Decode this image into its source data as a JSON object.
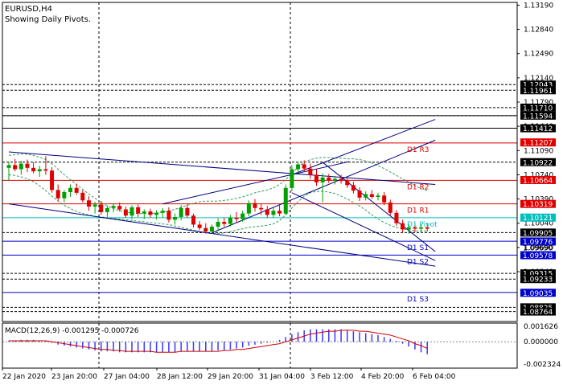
{
  "header": {
    "symbol": "EURUSD,H4",
    "subtitle": "Showing Daily Pivots."
  },
  "colors": {
    "background": "#ffffff",
    "grid": "#000000",
    "bull": "#00a000",
    "bear": "#e00000",
    "channel": "#00007f",
    "resistance": "#e00000",
    "pivot": "#00bfbf",
    "support": "#0000c8",
    "ma": "#2e9e5b",
    "macd_hist": "#3a3aff",
    "macd_signal": "#d00000",
    "label_black_bg": "#000000",
    "label_red_bg": "#e00000",
    "label_blue_bg": "#0000cc",
    "label_cyan_bg": "#00bfbf"
  },
  "chart_data": {
    "type": "candlestick",
    "title": "EURUSD,H4",
    "ylim": [
      1.0862,
      1.1323
    ],
    "y_ticks": [
      "1.13190",
      "1.12840",
      "1.12490",
      "1.12140",
      "1.11790",
      "1.11440",
      "1.11090",
      "1.10740",
      "1.10390",
      "1.10040",
      "1.09690",
      "1.09340"
    ],
    "x_labels": [
      "22 Jan 2020",
      "23 Jan 20:00",
      "27 Jan 04:00",
      "28 Jan 12:00",
      "29 Jan 20:00",
      "31 Jan 04:00",
      "3 Feb 12:00",
      "4 Feb 20:00",
      "6 Feb 04:00"
    ],
    "grid": "dashed vertical lines",
    "pivot_lines": [
      {
        "name": "D1 R3",
        "value": 1.112
      },
      {
        "name": "D1 R2",
        "value": 1.1066
      },
      {
        "name": "D1 R1",
        "value": 1.1032
      },
      {
        "name": "D1 Pivot",
        "value": 1.1012
      },
      {
        "name": "D1 S1",
        "value": 1.0978
      },
      {
        "name": "D1 S2",
        "value": 1.0958
      },
      {
        "name": "D1 S3",
        "value": 1.0904
      }
    ],
    "price_labels": [
      {
        "text": "1.12043",
        "value": 1.12043,
        "style": "black"
      },
      {
        "text": "1.11961",
        "value": 1.11961,
        "style": "black"
      },
      {
        "text": "1.11710",
        "value": 1.1171,
        "style": "black"
      },
      {
        "text": "1.11594",
        "value": 1.11594,
        "style": "black"
      },
      {
        "text": "1.11412",
        "value": 1.11412,
        "style": "black"
      },
      {
        "text": "1.11207",
        "value": 1.11207,
        "style": "red"
      },
      {
        "text": "1.10922",
        "value": 1.10922,
        "style": "black"
      },
      {
        "text": "1.10664",
        "value": 1.10664,
        "style": "red"
      },
      {
        "text": "1.10319",
        "value": 1.10319,
        "style": "red"
      },
      {
        "text": "1.10121",
        "value": 1.10121,
        "style": "cyan"
      },
      {
        "text": "1.09905",
        "value": 1.09905,
        "style": "black"
      },
      {
        "text": "1.09776",
        "value": 1.09776,
        "style": "blue"
      },
      {
        "text": "1.09690",
        "value": 1.0969,
        "style": "plain"
      },
      {
        "text": "1.09578",
        "value": 1.09578,
        "style": "blue"
      },
      {
        "text": "1.09315",
        "value": 1.09315,
        "style": "black"
      },
      {
        "text": "1.09233",
        "value": 1.09233,
        "style": "black"
      },
      {
        "text": "1.09035",
        "value": 1.09035,
        "style": "blue"
      },
      {
        "text": "1.08825",
        "value": 1.08825,
        "style": "black"
      },
      {
        "text": "1.08764",
        "value": 1.08764,
        "style": "black"
      }
    ],
    "dashed_levels": [
      1.12043,
      1.11961,
      1.1171,
      1.11594,
      1.11412,
      1.10922,
      1.09905,
      1.09315,
      1.09233,
      1.08825,
      1.08764
    ],
    "candles": [
      {
        "o": 1.1084,
        "h": 1.1093,
        "l": 1.1066,
        "c": 1.1088
      },
      {
        "o": 1.1088,
        "h": 1.1097,
        "l": 1.1079,
        "c": 1.1082
      },
      {
        "o": 1.1082,
        "h": 1.1094,
        "l": 1.1074,
        "c": 1.109
      },
      {
        "o": 1.109,
        "h": 1.1096,
        "l": 1.1078,
        "c": 1.1084
      },
      {
        "o": 1.1084,
        "h": 1.1092,
        "l": 1.1076,
        "c": 1.1079
      },
      {
        "o": 1.1079,
        "h": 1.1087,
        "l": 1.1071,
        "c": 1.1082
      },
      {
        "o": 1.1082,
        "h": 1.1101,
        "l": 1.1074,
        "c": 1.108
      },
      {
        "o": 1.108,
        "h": 1.1085,
        "l": 1.1048,
        "c": 1.1052
      },
      {
        "o": 1.1052,
        "h": 1.106,
        "l": 1.1036,
        "c": 1.104
      },
      {
        "o": 1.104,
        "h": 1.1052,
        "l": 1.1034,
        "c": 1.1049
      },
      {
        "o": 1.1049,
        "h": 1.106,
        "l": 1.1042,
        "c": 1.1055
      },
      {
        "o": 1.1055,
        "h": 1.1061,
        "l": 1.1045,
        "c": 1.1048
      },
      {
        "o": 1.1048,
        "h": 1.1052,
        "l": 1.1034,
        "c": 1.1037
      },
      {
        "o": 1.1037,
        "h": 1.1043,
        "l": 1.1022,
        "c": 1.1028
      },
      {
        "o": 1.1028,
        "h": 1.1035,
        "l": 1.1018,
        "c": 1.1031
      },
      {
        "o": 1.1031,
        "h": 1.1036,
        "l": 1.1016,
        "c": 1.102
      },
      {
        "o": 1.102,
        "h": 1.1029,
        "l": 1.1013,
        "c": 1.1026
      },
      {
        "o": 1.1026,
        "h": 1.1033,
        "l": 1.102,
        "c": 1.1029
      },
      {
        "o": 1.1029,
        "h": 1.1034,
        "l": 1.1021,
        "c": 1.1024
      },
      {
        "o": 1.1024,
        "h": 1.1028,
        "l": 1.1012,
        "c": 1.1015
      },
      {
        "o": 1.1015,
        "h": 1.103,
        "l": 1.101,
        "c": 1.1027
      },
      {
        "o": 1.1027,
        "h": 1.1031,
        "l": 1.1013,
        "c": 1.1018
      },
      {
        "o": 1.1018,
        "h": 1.1024,
        "l": 1.101,
        "c": 1.1021
      },
      {
        "o": 1.1021,
        "h": 1.1025,
        "l": 1.1012,
        "c": 1.1016
      },
      {
        "o": 1.1016,
        "h": 1.1023,
        "l": 1.1009,
        "c": 1.1019
      },
      {
        "o": 1.1019,
        "h": 1.1026,
        "l": 1.1012,
        "c": 1.1022
      },
      {
        "o": 1.1022,
        "h": 1.1027,
        "l": 1.1005,
        "c": 1.1009
      },
      {
        "o": 1.1009,
        "h": 1.1018,
        "l": 1.1002,
        "c": 1.1013
      },
      {
        "o": 1.1013,
        "h": 1.103,
        "l": 1.1008,
        "c": 1.1026
      },
      {
        "o": 1.1026,
        "h": 1.1031,
        "l": 1.1012,
        "c": 1.1015
      },
      {
        "o": 1.1015,
        "h": 1.1018,
        "l": 1.0998,
        "c": 1.1002
      },
      {
        "o": 1.1002,
        "h": 1.1007,
        "l": 1.0994,
        "c": 1.0997
      },
      {
        "o": 1.0997,
        "h": 1.1004,
        "l": 1.0989,
        "c": 1.0992
      },
      {
        "o": 1.0992,
        "h": 1.1002,
        "l": 1.0989,
        "c": 1.0999
      },
      {
        "o": 1.0999,
        "h": 1.1011,
        "l": 1.0994,
        "c": 1.1006
      },
      {
        "o": 1.1006,
        "h": 1.1012,
        "l": 1.0999,
        "c": 1.1003
      },
      {
        "o": 1.1003,
        "h": 1.1016,
        "l": 1.0999,
        "c": 1.1012
      },
      {
        "o": 1.1012,
        "h": 1.102,
        "l": 1.1005,
        "c": 1.101
      },
      {
        "o": 1.101,
        "h": 1.1022,
        "l": 1.1006,
        "c": 1.1018
      },
      {
        "o": 1.1018,
        "h": 1.1037,
        "l": 1.1014,
        "c": 1.1033
      },
      {
        "o": 1.1033,
        "h": 1.1039,
        "l": 1.1021,
        "c": 1.1026
      },
      {
        "o": 1.1026,
        "h": 1.1032,
        "l": 1.1016,
        "c": 1.1024
      },
      {
        "o": 1.1024,
        "h": 1.1029,
        "l": 1.1012,
        "c": 1.1016
      },
      {
        "o": 1.1016,
        "h": 1.1026,
        "l": 1.1012,
        "c": 1.1022
      },
      {
        "o": 1.1022,
        "h": 1.103,
        "l": 1.1014,
        "c": 1.1018
      },
      {
        "o": 1.1018,
        "h": 1.106,
        "l": 1.1016,
        "c": 1.1055
      },
      {
        "o": 1.1055,
        "h": 1.1088,
        "l": 1.105,
        "c": 1.1082
      },
      {
        "o": 1.1082,
        "h": 1.1093,
        "l": 1.1076,
        "c": 1.1089
      },
      {
        "o": 1.1089,
        "h": 1.1095,
        "l": 1.1078,
        "c": 1.1083
      },
      {
        "o": 1.1083,
        "h": 1.109,
        "l": 1.1068,
        "c": 1.1074
      },
      {
        "o": 1.1074,
        "h": 1.1082,
        "l": 1.1058,
        "c": 1.1063
      },
      {
        "o": 1.1063,
        "h": 1.1076,
        "l": 1.1034,
        "c": 1.107
      },
      {
        "o": 1.107,
        "h": 1.1075,
        "l": 1.1062,
        "c": 1.1066
      },
      {
        "o": 1.1066,
        "h": 1.1072,
        "l": 1.106,
        "c": 1.1068
      },
      {
        "o": 1.1068,
        "h": 1.1074,
        "l": 1.1061,
        "c": 1.1065
      },
      {
        "o": 1.1065,
        "h": 1.107,
        "l": 1.1055,
        "c": 1.1059
      },
      {
        "o": 1.1059,
        "h": 1.1064,
        "l": 1.1047,
        "c": 1.1051
      },
      {
        "o": 1.1051,
        "h": 1.1056,
        "l": 1.1036,
        "c": 1.1041
      },
      {
        "o": 1.1041,
        "h": 1.105,
        "l": 1.1037,
        "c": 1.1046
      },
      {
        "o": 1.1046,
        "h": 1.1052,
        "l": 1.1039,
        "c": 1.1042
      },
      {
        "o": 1.1042,
        "h": 1.1048,
        "l": 1.1037,
        "c": 1.1044
      },
      {
        "o": 1.1044,
        "h": 1.1049,
        "l": 1.103,
        "c": 1.1034
      },
      {
        "o": 1.1034,
        "h": 1.1038,
        "l": 1.1015,
        "c": 1.1019
      },
      {
        "o": 1.1019,
        "h": 1.1023,
        "l": 1.1,
        "c": 1.1004
      },
      {
        "o": 1.1004,
        "h": 1.1009,
        "l": 1.099,
        "c": 1.0995
      },
      {
        "o": 1.0995,
        "h": 1.1003,
        "l": 1.0989,
        "c": 1.0998
      },
      {
        "o": 1.0998,
        "h": 1.1004,
        "l": 1.0991,
        "c": 1.0996
      },
      {
        "o": 1.0996,
        "h": 1.1003,
        "l": 1.099,
        "c": 1.0998
      },
      {
        "o": 1.0998,
        "h": 1.1004,
        "l": 1.0992,
        "c": 1.0996
      }
    ],
    "moving_average_upper": [
      1.1102,
      1.1103,
      1.1104,
      1.1104,
      1.1102,
      1.1099,
      1.1096,
      1.109,
      1.1082,
      1.1074,
      1.1067,
      1.106,
      1.1053,
      1.1046,
      1.104,
      1.1034,
      1.1029,
      1.1025,
      1.1022,
      1.102,
      1.1019,
      1.1018,
      1.1018,
      1.1018,
      1.1019,
      1.102,
      1.1022,
      1.1024,
      1.1027,
      1.103,
      1.1033,
      1.1035,
      1.1036,
      1.1036,
      1.1036,
      1.1037,
      1.1038,
      1.104,
      1.1042,
      1.1045,
      1.1048,
      1.105,
      1.1052,
      1.1055,
      1.106,
      1.1067,
      1.1076,
      1.1085,
      1.1092,
      1.1096,
      1.1098,
      1.1099,
      1.1099,
      1.1098,
      1.1098,
      1.1097,
      1.1097,
      1.1096,
      1.1094,
      1.1091,
      1.1087,
      1.1083,
      1.1078,
      1.1073,
      1.1068,
      1.1063,
      1.1058,
      1.1054,
      1.1051
    ],
    "moving_average_lower": [
      1.1074,
      1.1073,
      1.1071,
      1.1068,
      1.1064,
      1.1058,
      1.1051,
      1.1043,
      1.1036,
      1.103,
      1.1025,
      1.1021,
      1.1018,
      1.1016,
      1.1014,
      1.1013,
      1.1012,
      1.1011,
      1.101,
      1.1009,
      1.1008,
      1.1007,
      1.1006,
      1.1005,
      1.1004,
      1.1003,
      1.1002,
      1.1,
      1.0998,
      1.0996,
      1.0994,
      1.0992,
      1.099,
      1.0989,
      1.0989,
      1.099,
      1.0992,
      1.0994,
      1.0996,
      1.0998,
      1.0999,
      1.1,
      1.1001,
      1.1003,
      1.1008,
      1.1016,
      1.1026,
      1.1035,
      1.1043,
      1.1048,
      1.105,
      1.105,
      1.1049,
      1.1047,
      1.1043,
      1.1039,
      1.1034,
      1.1029,
      1.1023,
      1.1016,
      1.101,
      1.1005,
      1.1001,
      1.0998,
      1.0996,
      1.0994,
      1.0993,
      1.0993,
      1.0993
    ],
    "channel_lines": [
      {
        "from": [
          0,
          1.1107
        ],
        "to": [
          68,
          1.106
        ]
      },
      {
        "from": [
          0,
          1.1032
        ],
        "to": [
          68,
          1.0942
        ]
      },
      {
        "from": [
          25,
          1.1032
        ],
        "to": [
          54,
          1.1093
        ]
      },
      {
        "from": [
          33,
          1.099
        ],
        "to": [
          68,
          1.1124
        ]
      },
      {
        "from": [
          46,
          1.1074
        ],
        "to": [
          68,
          1.1154
        ]
      },
      {
        "from": [
          51,
          1.1092
        ],
        "to": [
          68,
          1.0963
        ]
      },
      {
        "from": [
          46,
          1.1048
        ],
        "to": [
          68,
          1.095
        ]
      }
    ],
    "macd": {
      "label": "MACD(12,26,9) -0.001295 -0.000726",
      "y_ticks": [
        "0.001626",
        "0.000000",
        "-0.002324"
      ],
      "ylim": [
        -0.00275,
        0.00195
      ],
      "histogram": [
        0.0001,
        0.0001,
        0.0002,
        0.0002,
        0.0002,
        0.0001,
        0.0001,
        -0.0001,
        -0.0003,
        -0.0004,
        -0.0005,
        -0.0006,
        -0.0007,
        -0.0008,
        -0.0009,
        -0.001,
        -0.001,
        -0.001,
        -0.0011,
        -0.0011,
        -0.0011,
        -0.0011,
        -0.0011,
        -0.0011,
        -0.0011,
        -0.0011,
        -0.0011,
        -0.0011,
        -0.001,
        -0.001,
        -0.001,
        -0.001,
        -0.001,
        -0.001,
        -0.0009,
        -0.0009,
        -0.0008,
        -0.0007,
        -0.0006,
        -0.0004,
        -0.0003,
        -0.0002,
        -0.0001,
        0.0,
        0.0002,
        0.0005,
        0.0008,
        0.001,
        0.0012,
        0.0013,
        0.0013,
        0.0013,
        0.0013,
        0.0013,
        0.0013,
        0.0012,
        0.0011,
        0.001,
        0.0009,
        0.0008,
        0.0007,
        0.0005,
        0.0003,
        0.0001,
        -0.0002,
        -0.0005,
        -0.0008,
        -0.0011,
        -0.0013
      ],
      "signal": [
        0.0001,
        0.0001,
        0.0001,
        0.0001,
        0.0001,
        0.0001,
        0.0001,
        0.0,
        -0.0001,
        -0.0002,
        -0.0003,
        -0.0004,
        -0.0005,
        -0.0006,
        -0.0007,
        -0.0008,
        -0.0008,
        -0.0009,
        -0.0009,
        -0.001,
        -0.001,
        -0.001,
        -0.001,
        -0.001,
        -0.0011,
        -0.0011,
        -0.0011,
        -0.0011,
        -0.001,
        -0.001,
        -0.001,
        -0.001,
        -0.001,
        -0.001,
        -0.001,
        -0.0009,
        -0.0009,
        -0.0008,
        -0.0008,
        -0.0007,
        -0.0006,
        -0.0005,
        -0.0004,
        -0.0003,
        -0.0002,
        0.0,
        0.0002,
        0.0004,
        0.0006,
        0.0008,
        0.0009,
        0.001,
        0.0011,
        0.0011,
        0.0012,
        0.0012,
        0.0012,
        0.0011,
        0.0011,
        0.001,
        0.0009,
        0.0008,
        0.0007,
        0.0005,
        0.0003,
        0.0001,
        -0.0002,
        -0.0004,
        -0.0007
      ]
    }
  }
}
